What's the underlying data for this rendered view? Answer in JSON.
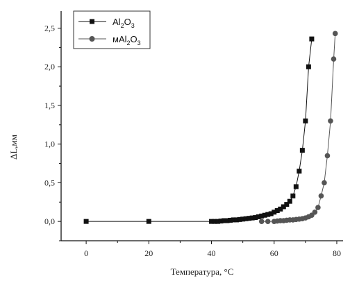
{
  "chart_data": {
    "type": "line",
    "title": "",
    "xlabel": "Температура, °С",
    "ylabel": "ΔL,мм",
    "xlim": [
      -8,
      82
    ],
    "ylim": [
      -0.25,
      2.72
    ],
    "x_ticks": [
      "0",
      "20",
      "40",
      "60",
      "80"
    ],
    "x_tick_values": [
      0,
      20,
      40,
      60,
      80
    ],
    "y_ticks": [
      "0,0",
      "0,5",
      "1,0",
      "1,5",
      "2,0",
      "2,5"
    ],
    "y_tick_values": [
      0,
      0.5,
      1.0,
      1.5,
      2.0,
      2.5
    ],
    "grid": false,
    "legend_position": "top-left",
    "legend": [
      {
        "prefix": "",
        "base1": "Al",
        "sub1": "2",
        "base2": "O",
        "sub2": "3"
      },
      {
        "prefix": "м",
        "base1": "Al",
        "sub1": "2",
        "base2": "O",
        "sub2": "3"
      }
    ],
    "series": [
      {
        "marker": "square",
        "color": "#111111",
        "x": [
          0,
          20,
          40,
          41,
          42,
          43,
          44,
          45,
          46,
          47,
          48,
          49,
          50,
          51,
          52,
          53,
          54,
          55,
          56,
          57,
          58,
          59,
          60,
          61,
          62,
          63,
          64,
          65,
          66,
          67,
          68,
          69,
          70,
          71,
          72
        ],
        "y": [
          0,
          0,
          0,
          0,
          0,
          0.005,
          0.01,
          0.01,
          0.015,
          0.02,
          0.02,
          0.025,
          0.03,
          0.035,
          0.04,
          0.045,
          0.05,
          0.06,
          0.07,
          0.08,
          0.09,
          0.1,
          0.12,
          0.14,
          0.16,
          0.19,
          0.22,
          0.26,
          0.33,
          0.45,
          0.65,
          0.92,
          1.3,
          2.0,
          2.36
        ]
      },
      {
        "marker": "circle",
        "color": "#555555",
        "x": [
          56,
          58,
          60,
          61,
          62,
          63,
          64,
          65,
          66,
          67,
          68,
          69,
          70,
          71,
          72,
          73,
          74,
          75,
          76,
          77,
          78,
          79
        ],
        "y": [
          0,
          0,
          0,
          0.005,
          0.01,
          0.01,
          0.015,
          0.02,
          0.02,
          0.025,
          0.03,
          0.035,
          0.045,
          0.06,
          0.08,
          0.12,
          0.18,
          0.33,
          0.5,
          0.85,
          1.3,
          2.1
        ]
      }
    ],
    "series_extra": [
      {
        "x": 79.5,
        "y": 2.43
      }
    ]
  }
}
